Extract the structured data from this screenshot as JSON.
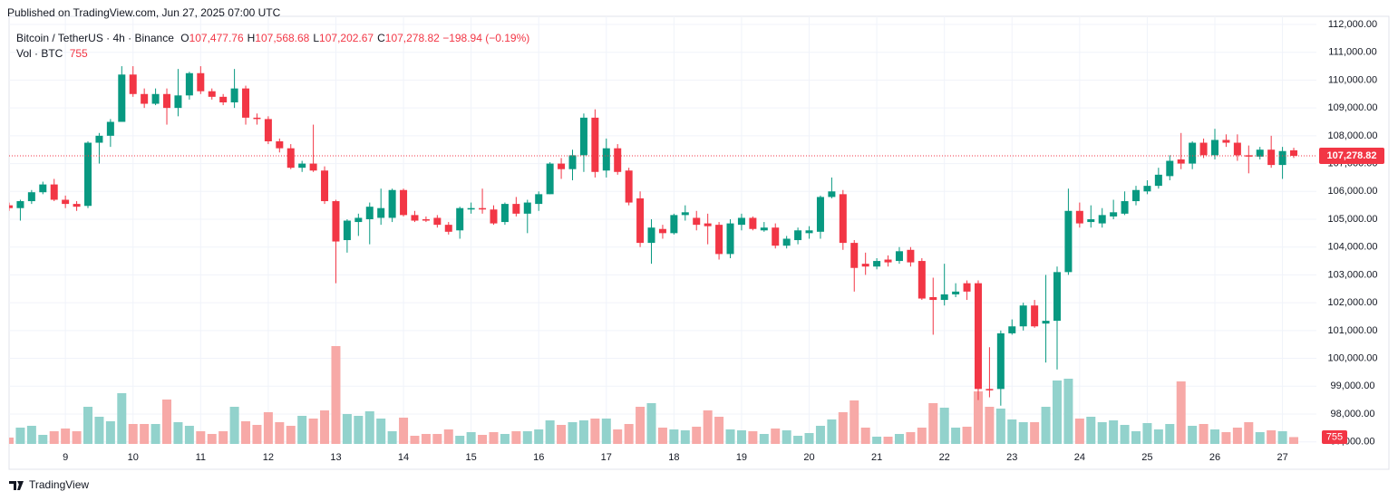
{
  "published": "Published on TradingView.com, Jun 27, 2025 07:00 UTC",
  "header": {
    "symbol": "Bitcoin / TetherUS · 4h · Binance",
    "ohlc": [
      {
        "label": "O",
        "value": "107,477.76"
      },
      {
        "label": "H",
        "value": "107,568.68"
      },
      {
        "label": "L",
        "value": "107,202.67"
      },
      {
        "label": "C",
        "value": "107,278.82"
      }
    ],
    "change": "−198.94 (−0.19%)",
    "volume_label": "Vol · BTC"
  },
  "footer": "TradingView",
  "chart_data": {
    "type": "candlestick",
    "up_color": "#089981",
    "down_color": "#f23645",
    "volume_up_color": "#92d2cc",
    "volume_down_color": "#f7a9a7",
    "grid": true,
    "categories": [
      null,
      null,
      null,
      null,
      null,
      "9",
      null,
      null,
      null,
      null,
      null,
      "10",
      null,
      null,
      null,
      null,
      null,
      "11",
      null,
      null,
      null,
      null,
      null,
      "12",
      null,
      null,
      null,
      null,
      null,
      "13",
      null,
      null,
      null,
      null,
      null,
      "14",
      null,
      null,
      null,
      null,
      null,
      "15",
      null,
      null,
      null,
      null,
      null,
      "16",
      null,
      null,
      null,
      null,
      null,
      "17",
      null,
      null,
      null,
      null,
      null,
      "18",
      null,
      null,
      null,
      null,
      null,
      "19",
      null,
      null,
      null,
      null,
      null,
      "20",
      null,
      null,
      null,
      null,
      null,
      "21",
      null,
      null,
      null,
      null,
      null,
      "22",
      null,
      null,
      null,
      null,
      null,
      "23",
      null,
      null,
      null,
      null,
      null,
      "24",
      null,
      null,
      null,
      null,
      null,
      "25",
      null,
      null,
      null,
      null,
      null,
      "26",
      null,
      null,
      null,
      null,
      null,
      "27",
      null
    ],
    "open": [
      105500,
      105400,
      105650,
      105970,
      106250,
      105700,
      105550,
      105480,
      107750,
      108000,
      108500,
      110200,
      109500,
      109150,
      109500,
      109000,
      109450,
      110250,
      109600,
      109400,
      109200,
      109700,
      108650,
      108600,
      107800,
      107550,
      106850,
      107000,
      106750,
      105650,
      104250,
      104900,
      105000,
      105050,
      105050,
      106050,
      105150,
      105000,
      105050,
      104800,
      104600,
      105350,
      105400,
      105350,
      104900,
      105550,
      105200,
      105550,
      105900,
      107000,
      106800,
      107300,
      108650,
      106750,
      107550,
      106750,
      105750,
      104150,
      104650,
      104500,
      105150,
      105050,
      104850,
      104800,
      103750,
      104800,
      105050,
      104600,
      104700,
      104050,
      104250,
      104500,
      104550,
      105800,
      105900,
      104150,
      103400,
      103300,
      103550,
      103500,
      103900,
      103500,
      102200,
      102100,
      102300,
      102700,
      102700,
      98900,
      98900,
      100900,
      101150,
      101900,
      101250,
      101350,
      103100,
      105300,
      104900,
      104850,
      105100,
      105200,
      105650,
      106000,
      106200,
      106550,
      107150,
      107000,
      107750,
      107300,
      107850,
      107750,
      107300,
      107250,
      107500,
      106950,
      107477.76
    ],
    "high": [
      105600,
      105700,
      106050,
      106350,
      106450,
      105850,
      105650,
      107800,
      108100,
      108600,
      110500,
      110500,
      109700,
      109700,
      109700,
      110400,
      110300,
      110500,
      109700,
      109500,
      110400,
      109800,
      108800,
      108700,
      107900,
      107700,
      107100,
      108400,
      106900,
      105700,
      105000,
      105200,
      105600,
      106100,
      106100,
      106100,
      105300,
      105100,
      105150,
      104900,
      105450,
      105600,
      106100,
      105500,
      105600,
      105800,
      105700,
      106000,
      107050,
      107200,
      107500,
      108800,
      108950,
      107900,
      107700,
      106850,
      106000,
      105000,
      104800,
      105200,
      105500,
      105300,
      105200,
      104900,
      105000,
      105200,
      105100,
      104900,
      104850,
      104400,
      104700,
      104750,
      105850,
      106500,
      106050,
      104250,
      103800,
      103600,
      103700,
      104000,
      104000,
      103600,
      102900,
      103400,
      102700,
      102800,
      102800,
      100400,
      101000,
      101400,
      102000,
      102100,
      103000,
      103300,
      106100,
      105600,
      105500,
      105400,
      105700,
      106000,
      106200,
      106400,
      106850,
      107300,
      108100,
      107800,
      107900,
      108250,
      108050,
      108050,
      107650,
      107600,
      108000,
      107600,
      107568.68
    ],
    "low": [
      105300,
      104950,
      105550,
      105900,
      105650,
      105400,
      105300,
      105400,
      107000,
      107600,
      108500,
      109400,
      109000,
      109100,
      108400,
      108700,
      109300,
      109500,
      109300,
      109100,
      109000,
      108400,
      108400,
      107700,
      107400,
      106800,
      106700,
      106700,
      105550,
      102700,
      103800,
      104400,
      104100,
      104800,
      104900,
      105100,
      104900,
      104900,
      104700,
      104450,
      104300,
      105200,
      105200,
      104800,
      104800,
      105100,
      104500,
      105300,
      105900,
      106450,
      106400,
      106700,
      106500,
      106500,
      106600,
      105500,
      104000,
      103400,
      104300,
      104450,
      104950,
      104600,
      104100,
      103550,
      103600,
      104600,
      104600,
      104550,
      103950,
      103950,
      104100,
      104300,
      104300,
      105750,
      103900,
      102400,
      103000,
      103200,
      103300,
      103400,
      103300,
      102100,
      100850,
      101900,
      102200,
      102100,
      98500,
      98600,
      98300,
      100850,
      101000,
      101100,
      99850,
      99600,
      103000,
      104700,
      104700,
      104700,
      105000,
      105150,
      105500,
      105900,
      106100,
      106400,
      106800,
      106800,
      107200,
      107150,
      107600,
      107100,
      106650,
      107150,
      106850,
      106450,
      107202.67
    ],
    "close": [
      105400,
      105650,
      105970,
      106250,
      105700,
      105550,
      105450,
      107750,
      108000,
      108500,
      110200,
      109500,
      109150,
      109500,
      109000,
      109450,
      110250,
      109600,
      109400,
      109200,
      109700,
      108650,
      108600,
      107800,
      107550,
      106850,
      107000,
      106750,
      105650,
      104200,
      104950,
      105050,
      105450,
      105400,
      106050,
      105150,
      104950,
      104950,
      104800,
      104550,
      105400,
      105400,
      105350,
      104850,
      105550,
      105200,
      105600,
      105900,
      107000,
      106800,
      107300,
      108650,
      106700,
      107550,
      106700,
      105600,
      104150,
      104700,
      104500,
      105150,
      105250,
      104800,
      104750,
      103750,
      104850,
      105050,
      104650,
      104700,
      104050,
      104300,
      104600,
      104600,
      105800,
      106000,
      104150,
      103250,
      103300,
      103500,
      103450,
      103850,
      103450,
      102150,
      102100,
      102300,
      102400,
      102400,
      98900,
      98850,
      100900,
      101150,
      101900,
      101150,
      101350,
      103100,
      105300,
      104850,
      105000,
      105150,
      105250,
      105650,
      106050,
      106200,
      106600,
      107100,
      107000,
      107750,
      107300,
      107850,
      107750,
      107300,
      107250,
      107500,
      106950,
      107450,
      107278.82
    ],
    "volume": [
      700,
      1800,
      2000,
      1000,
      1400,
      1700,
      1400,
      4100,
      3000,
      2500,
      5600,
      2200,
      2200,
      2200,
      4900,
      2400,
      2000,
      1400,
      1100,
      1400,
      4100,
      2500,
      2100,
      3500,
      2400,
      2000,
      3100,
      2800,
      3700,
      10800,
      3300,
      3100,
      3600,
      2800,
      1400,
      2900,
      900,
      1100,
      1100,
      1600,
      900,
      1300,
      1000,
      1300,
      1100,
      1400,
      1400,
      1600,
      2600,
      2100,
      2400,
      2600,
      2800,
      2800,
      1600,
      2200,
      4100,
      4500,
      1800,
      1600,
      1500,
      1900,
      3700,
      3000,
      1600,
      1500,
      1400,
      1100,
      1700,
      1500,
      900,
      1200,
      2000,
      2700,
      3500,
      4800,
      1800,
      800,
      800,
      1100,
      1300,
      1800,
      4500,
      4000,
      1800,
      1900,
      5800,
      4100,
      3900,
      2700,
      2400,
      2400,
      4100,
      7000,
      7200,
      2800,
      3000,
      2400,
      2600,
      2100,
      1400,
      2300,
      1600,
      2200,
      6900,
      2000,
      2200,
      1600,
      1300,
      1800,
      2400,
      1300,
      1500,
      1400,
      755
    ],
    "ylim": [
      96925,
      112293
    ],
    "yticks": [
      {
        "value": 97000,
        "label": "97,000.00"
      },
      {
        "value": 98000,
        "label": "98,000.00"
      },
      {
        "value": 99000,
        "label": "99,000.00"
      },
      {
        "value": 100000,
        "label": "100,000.00"
      },
      {
        "value": 101000,
        "label": "101,000.00"
      },
      {
        "value": 102000,
        "label": "102,000.00"
      },
      {
        "value": 103000,
        "label": "103,000.00"
      },
      {
        "value": 104000,
        "label": "104,000.00"
      },
      {
        "value": 105000,
        "label": "105,000.00"
      },
      {
        "value": 106000,
        "label": "106,000.00"
      },
      {
        "value": 107000,
        "label": "107,000.00"
      },
      {
        "value": 108000,
        "label": "108,000.00"
      },
      {
        "value": 109000,
        "label": "109,000.00"
      },
      {
        "value": 110000,
        "label": "110,000.00"
      },
      {
        "value": 111000,
        "label": "111,000.00"
      },
      {
        "value": 112000,
        "label": "112,000.00"
      }
    ],
    "y2lim": [
      0,
      14000
    ],
    "last_price": {
      "value": 107278.82,
      "label": "107,278.82"
    }
  }
}
